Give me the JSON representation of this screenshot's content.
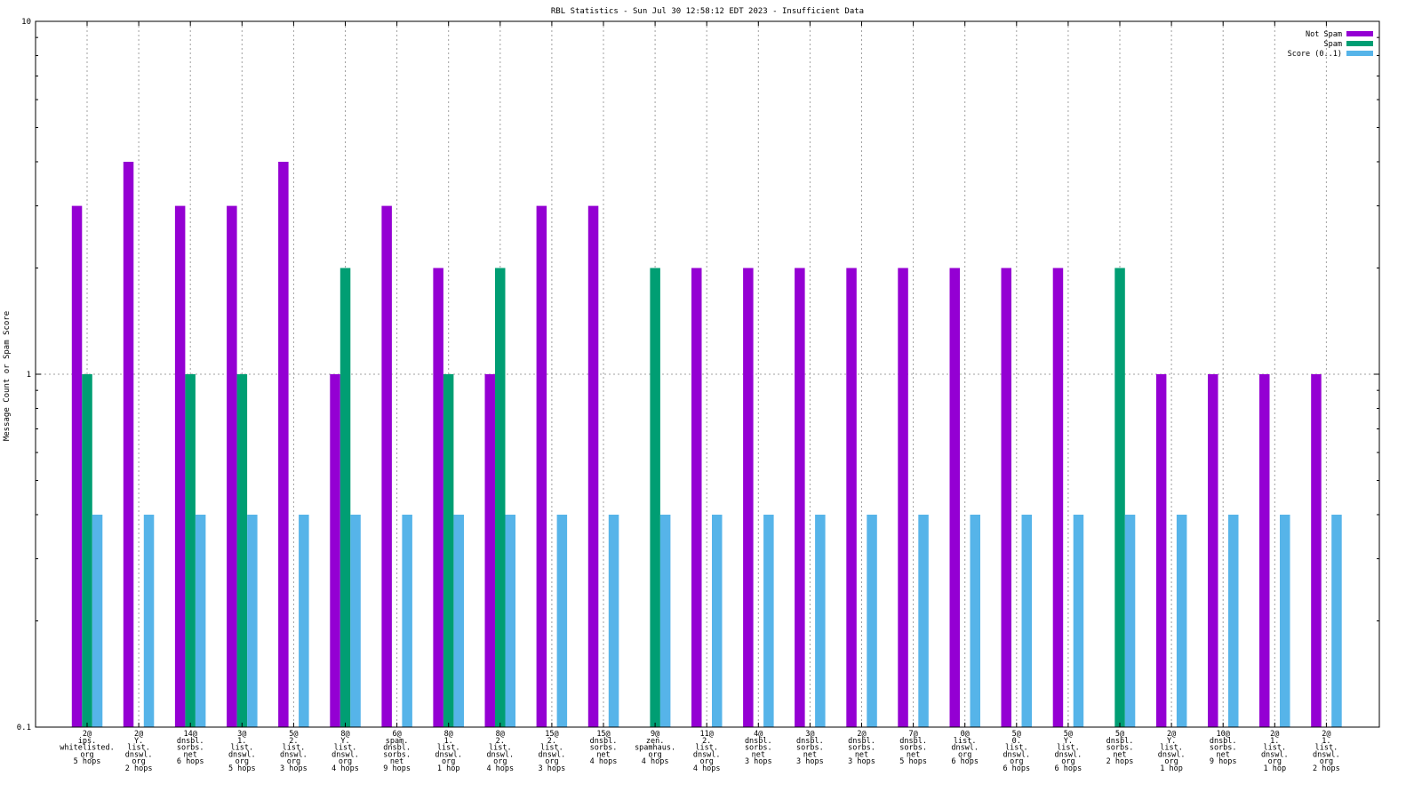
{
  "chart_data": {
    "type": "bar",
    "title": "RBL Statistics - Sun Jul 30 12:58:12 EDT 2023 - Insufficient Data",
    "xlabel": "",
    "ylabel": "Message Count or Spam Score",
    "yscale": "log",
    "ylim": [
      0.1,
      10
    ],
    "yticks": [
      "10",
      "1",
      "0.1"
    ],
    "grid": true,
    "legend_position": "top-right",
    "categories": [
      [
        "2@",
        "ips.",
        "whitelisted.",
        "org",
        "5 hops"
      ],
      [
        "2@",
        "Y.",
        "list.",
        "dnswl.",
        "org",
        "2 hops"
      ],
      [
        "14@",
        "dnsbl.",
        "sorbs.",
        "net",
        "6 hops"
      ],
      [
        "3@",
        "1.",
        "list.",
        "dnswl.",
        "org",
        "5 hops"
      ],
      [
        "5@",
        "2.",
        "list.",
        "dnswl.",
        "org",
        "3 hops"
      ],
      [
        "8@",
        "Y.",
        "list.",
        "dnswl.",
        "org",
        "4 hops"
      ],
      [
        "6@",
        "spam.",
        "dnsbl.",
        "sorbs.",
        "net",
        "9 hops"
      ],
      [
        "8@",
        "1.",
        "list.",
        "dnswl.",
        "org",
        "1 hop"
      ],
      [
        "8@",
        "2.",
        "list.",
        "dnswl.",
        "org",
        "4 hops"
      ],
      [
        "15@",
        "2.",
        "list.",
        "dnswl.",
        "org",
        "3 hops"
      ],
      [
        "15@",
        "dnsbl.",
        "sorbs.",
        "net",
        "4 hops"
      ],
      [
        "9@",
        "zen.",
        "spamhaus.",
        "org",
        "4 hops"
      ],
      [
        "11@",
        "2.",
        "list.",
        "dnswl.",
        "org",
        "4 hops"
      ],
      [
        "4@",
        "dnsbl.",
        "sorbs.",
        "net",
        "3 hops"
      ],
      [
        "3@",
        "dnsbl.",
        "sorbs.",
        "net",
        "3 hops"
      ],
      [
        "2@",
        "dnsbl.",
        "sorbs.",
        "net",
        "3 hops"
      ],
      [
        "7@",
        "dnsbl.",
        "sorbs.",
        "net",
        "5 hops"
      ],
      [
        "0@",
        "list.",
        "dnswl.",
        "org",
        "6 hops"
      ],
      [
        "5@",
        "0.",
        "list.",
        "dnswl.",
        "org",
        "6 hops"
      ],
      [
        "5@",
        "Y.",
        "list.",
        "dnswl.",
        "org",
        "6 hops"
      ],
      [
        "5@",
        "dnsbl.",
        "sorbs.",
        "net",
        "2 hops"
      ],
      [
        "2@",
        "Y.",
        "list.",
        "dnswl.",
        "org",
        "1 hop"
      ],
      [
        "10@",
        "dnsbl.",
        "sorbs.",
        "net",
        "9 hops"
      ],
      [
        "2@",
        "1.",
        "list.",
        "dnswl.",
        "org",
        "1 hop"
      ],
      [
        "2@",
        "1.",
        "list.",
        "dnswl.",
        "org",
        "2 hops"
      ]
    ],
    "series": [
      {
        "name": "Not Spam",
        "color": "#9400d3",
        "values": [
          3,
          4,
          3,
          3,
          4,
          1,
          3,
          2,
          1,
          3,
          3,
          null,
          2,
          2,
          2,
          2,
          2,
          2,
          2,
          2,
          null,
          1,
          1,
          1,
          1
        ]
      },
      {
        "name": "Spam",
        "color": "#009e73",
        "values": [
          1,
          null,
          1,
          1,
          null,
          2,
          null,
          1,
          2,
          null,
          null,
          2,
          null,
          null,
          null,
          null,
          null,
          null,
          null,
          null,
          2,
          null,
          null,
          null,
          null
        ]
      },
      {
        "name": "Score (0..1)",
        "color": "#56b4e9",
        "values": [
          0.4,
          0.4,
          0.4,
          0.4,
          0.4,
          0.4,
          0.4,
          0.4,
          0.4,
          0.4,
          0.4,
          0.4,
          0.4,
          0.4,
          0.4,
          0.4,
          0.4,
          0.4,
          0.4,
          0.4,
          0.4,
          0.4,
          0.4,
          0.4,
          0.4
        ]
      }
    ]
  }
}
